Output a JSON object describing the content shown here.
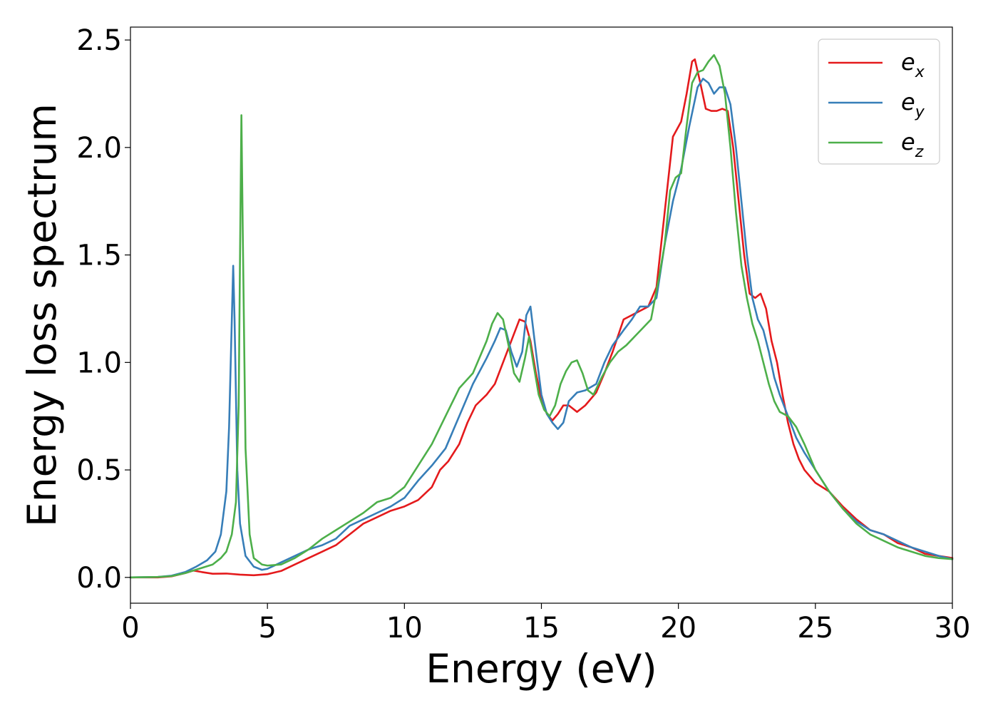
{
  "chart_data": {
    "type": "line",
    "title": "",
    "xlabel": "Energy (eV)",
    "ylabel": "Energy loss spectrum",
    "xlim": [
      0,
      30
    ],
    "ylim": [
      -0.12,
      2.56
    ],
    "xticks": [
      0,
      5,
      10,
      15,
      20,
      25,
      30
    ],
    "xtick_labels": [
      "0",
      "5",
      "10",
      "15",
      "20",
      "25",
      "30"
    ],
    "yticks": [
      0.0,
      0.5,
      1.0,
      1.5,
      2.0,
      2.5
    ],
    "ytick_labels": [
      "0.0",
      "0.5",
      "1.0",
      "1.5",
      "2.0",
      "2.5"
    ],
    "grid": false,
    "legend_position": "top-right",
    "series": [
      {
        "name": "e",
        "subscript": "x",
        "color": "#e41a1c",
        "x": [
          0,
          1,
          1.5,
          2,
          2.3,
          2.6,
          3,
          3.5,
          4,
          4.5,
          5,
          5.5,
          6,
          6.5,
          7,
          7.5,
          8,
          8.5,
          9,
          9.5,
          10,
          10.5,
          11,
          11.3,
          11.6,
          12,
          12.3,
          12.6,
          13,
          13.3,
          13.6,
          13.9,
          14.2,
          14.4,
          14.6,
          14.8,
          15,
          15.2,
          15.4,
          15.6,
          15.8,
          16,
          16.3,
          16.6,
          17,
          17.3,
          17.6,
          18,
          18.3,
          18.6,
          18.9,
          19.2,
          19.5,
          19.8,
          20.1,
          20.3,
          20.5,
          20.6,
          20.8,
          21,
          21.2,
          21.4,
          21.6,
          21.8,
          22,
          22.2,
          22.4,
          22.6,
          22.8,
          23,
          23.2,
          23.4,
          23.6,
          23.8,
          24,
          24.2,
          24.4,
          24.6,
          24.8,
          25,
          25.5,
          26,
          26.5,
          27,
          27.5,
          28,
          28.5,
          29,
          29.5,
          30
        ],
        "values": [
          0,
          0.0,
          0.005,
          0.02,
          0.032,
          0.025,
          0.017,
          0.018,
          0.013,
          0.01,
          0.015,
          0.03,
          0.06,
          0.09,
          0.12,
          0.15,
          0.2,
          0.25,
          0.28,
          0.31,
          0.33,
          0.36,
          0.42,
          0.5,
          0.54,
          0.62,
          0.72,
          0.8,
          0.85,
          0.9,
          1.0,
          1.1,
          1.2,
          1.19,
          1.1,
          0.95,
          0.83,
          0.76,
          0.73,
          0.76,
          0.8,
          0.8,
          0.77,
          0.8,
          0.86,
          0.95,
          1.05,
          1.2,
          1.22,
          1.24,
          1.26,
          1.35,
          1.7,
          2.05,
          2.12,
          2.25,
          2.4,
          2.41,
          2.3,
          2.18,
          2.17,
          2.17,
          2.18,
          2.17,
          2.0,
          1.75,
          1.5,
          1.32,
          1.3,
          1.32,
          1.25,
          1.1,
          1.0,
          0.85,
          0.72,
          0.62,
          0.55,
          0.5,
          0.47,
          0.44,
          0.4,
          0.33,
          0.27,
          0.22,
          0.2,
          0.16,
          0.14,
          0.11,
          0.1,
          0.09
        ]
      },
      {
        "name": "e",
        "subscript": "y",
        "color": "#377eb8",
        "x": [
          0,
          1,
          1.5,
          2,
          2.4,
          2.8,
          3.1,
          3.3,
          3.5,
          3.6,
          3.7,
          3.75,
          3.8,
          3.9,
          4.0,
          4.2,
          4.5,
          4.8,
          5.0,
          5.5,
          6,
          6.5,
          7,
          7.5,
          8,
          8.5,
          9,
          9.5,
          10,
          10.5,
          11,
          11.5,
          12,
          12.5,
          13,
          13.3,
          13.5,
          13.7,
          13.9,
          14.1,
          14.3,
          14.45,
          14.6,
          14.8,
          15,
          15.2,
          15.4,
          15.6,
          15.8,
          16,
          16.3,
          16.6,
          17,
          17.3,
          17.6,
          18,
          18.3,
          18.6,
          18.9,
          19.2,
          19.5,
          19.8,
          20.1,
          20.4,
          20.7,
          20.9,
          21.1,
          21.3,
          21.5,
          21.7,
          21.9,
          22.1,
          22.3,
          22.5,
          22.7,
          22.9,
          23.1,
          23.3,
          23.5,
          23.7,
          24,
          24.3,
          24.6,
          25,
          25.5,
          26,
          26.5,
          27,
          27.5,
          28,
          28.5,
          29,
          29.5,
          30
        ],
        "values": [
          0,
          0.002,
          0.008,
          0.025,
          0.05,
          0.08,
          0.12,
          0.2,
          0.4,
          0.7,
          1.2,
          1.45,
          1.2,
          0.5,
          0.25,
          0.1,
          0.05,
          0.035,
          0.04,
          0.07,
          0.1,
          0.13,
          0.15,
          0.18,
          0.24,
          0.27,
          0.3,
          0.33,
          0.37,
          0.45,
          0.52,
          0.6,
          0.75,
          0.9,
          1.02,
          1.1,
          1.16,
          1.15,
          1.05,
          0.98,
          1.05,
          1.22,
          1.26,
          1.05,
          0.85,
          0.76,
          0.72,
          0.69,
          0.72,
          0.82,
          0.86,
          0.87,
          0.9,
          1.0,
          1.08,
          1.15,
          1.2,
          1.26,
          1.26,
          1.3,
          1.55,
          1.75,
          1.9,
          2.1,
          2.28,
          2.32,
          2.3,
          2.25,
          2.28,
          2.28,
          2.2,
          2.0,
          1.75,
          1.5,
          1.3,
          1.2,
          1.15,
          1.05,
          0.93,
          0.85,
          0.75,
          0.65,
          0.58,
          0.5,
          0.4,
          0.32,
          0.26,
          0.22,
          0.2,
          0.17,
          0.14,
          0.12,
          0.1,
          0.085
        ]
      },
      {
        "name": "e",
        "subscript": "z",
        "color": "#4daf4a",
        "x": [
          0,
          1,
          1.5,
          2,
          2.5,
          3,
          3.3,
          3.5,
          3.7,
          3.85,
          3.95,
          4.0,
          4.05,
          4.1,
          4.2,
          4.35,
          4.5,
          4.8,
          5.0,
          5.5,
          6,
          6.5,
          7,
          7.5,
          8,
          8.5,
          9,
          9.5,
          10,
          10.5,
          11,
          11.5,
          12,
          12.5,
          13,
          13.2,
          13.4,
          13.6,
          13.8,
          14,
          14.2,
          14.4,
          14.55,
          14.7,
          14.9,
          15.1,
          15.3,
          15.5,
          15.7,
          15.9,
          16.1,
          16.3,
          16.5,
          16.7,
          16.9,
          17.2,
          17.5,
          17.8,
          18.1,
          18.4,
          18.7,
          19.0,
          19.3,
          19.5,
          19.7,
          19.9,
          20.1,
          20.3,
          20.5,
          20.7,
          20.9,
          21.1,
          21.3,
          21.5,
          21.7,
          21.9,
          22.1,
          22.3,
          22.5,
          22.7,
          22.9,
          23.1,
          23.3,
          23.5,
          23.7,
          24,
          24.3,
          24.6,
          25,
          25.5,
          26,
          26.5,
          27,
          27.5,
          28,
          28.5,
          29,
          29.5,
          30
        ],
        "values": [
          0,
          0.002,
          0.006,
          0.02,
          0.04,
          0.06,
          0.09,
          0.12,
          0.2,
          0.35,
          0.8,
          1.5,
          2.15,
          1.6,
          0.6,
          0.2,
          0.09,
          0.06,
          0.055,
          0.06,
          0.09,
          0.13,
          0.18,
          0.22,
          0.26,
          0.3,
          0.35,
          0.37,
          0.42,
          0.52,
          0.62,
          0.75,
          0.88,
          0.95,
          1.1,
          1.18,
          1.23,
          1.2,
          1.08,
          0.95,
          0.91,
          1.02,
          1.12,
          1.0,
          0.85,
          0.78,
          0.75,
          0.8,
          0.9,
          0.96,
          1.0,
          1.01,
          0.95,
          0.87,
          0.85,
          0.93,
          1.0,
          1.05,
          1.08,
          1.12,
          1.16,
          1.2,
          1.4,
          1.55,
          1.8,
          1.86,
          1.88,
          2.1,
          2.3,
          2.35,
          2.36,
          2.4,
          2.43,
          2.38,
          2.25,
          2.0,
          1.7,
          1.45,
          1.3,
          1.18,
          1.1,
          1.0,
          0.9,
          0.82,
          0.77,
          0.75,
          0.7,
          0.62,
          0.5,
          0.4,
          0.32,
          0.25,
          0.2,
          0.17,
          0.14,
          0.12,
          0.1,
          0.09,
          0.085
        ]
      }
    ]
  }
}
